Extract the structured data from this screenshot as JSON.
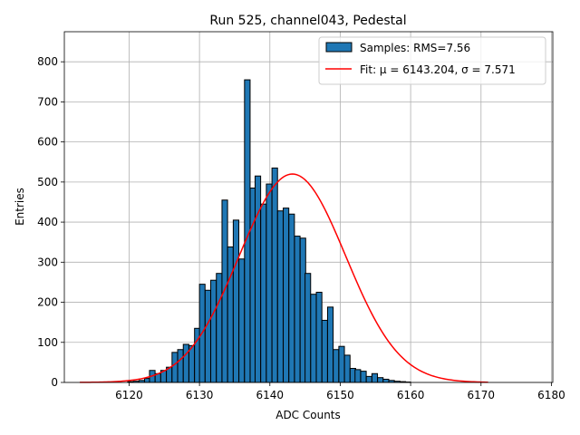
{
  "chart_data": {
    "type": "bar",
    "title": "Run 525, channel043, Pedestal",
    "xlabel": "ADC Counts",
    "ylabel": "Entries",
    "xlim": [
      6110.8,
      6180.2
    ],
    "ylim": [
      0,
      875
    ],
    "xticks": [
      6120,
      6130,
      6140,
      6150,
      6160,
      6170,
      6180
    ],
    "yticks": [
      0,
      100,
      200,
      300,
      400,
      500,
      600,
      700,
      800
    ],
    "grid": true,
    "legend_position": "top-right",
    "bin_width": 0.79,
    "series": [
      {
        "name": "Samples: RMS=7.56",
        "kind": "histogram",
        "color": "#1f77b4",
        "edgecolor": "#000000",
        "bins_x": [
          6119.0,
          6119.8,
          6120.6,
          6121.4,
          6122.2,
          6122.9,
          6123.7,
          6124.5,
          6125.3,
          6126.1,
          6126.9,
          6127.7,
          6128.5,
          6129.3,
          6130.0,
          6130.8,
          6131.6,
          6132.4,
          6133.2,
          6134.0,
          6134.8,
          6135.6,
          6136.4,
          6137.2,
          6137.9,
          6138.7,
          6139.5,
          6140.3,
          6141.1,
          6141.9,
          6142.7,
          6143.5,
          6144.3,
          6145.0,
          6145.8,
          6146.6,
          6147.4,
          6148.2,
          6149.0,
          6149.8,
          6150.6,
          6151.4,
          6152.1,
          6152.9,
          6153.7,
          6154.5,
          6155.3,
          6156.1,
          6156.9,
          6157.7,
          6158.5,
          6159.2,
          6160.0,
          6160.8,
          6161.6,
          6162.4,
          6163.2,
          6164.0,
          6164.8,
          6165.6,
          6166.3,
          6167.1,
          6167.9
        ],
        "counts": [
          0,
          2,
          3,
          5,
          10,
          30,
          22,
          30,
          38,
          75,
          82,
          95,
          92,
          135,
          245,
          230,
          255,
          272,
          455,
          338,
          405,
          308,
          755,
          485,
          515,
          445,
          495,
          535,
          428,
          435,
          420,
          365,
          360,
          272,
          220,
          225,
          155,
          188,
          82,
          90,
          68,
          35,
          32,
          28,
          15,
          22,
          12,
          8,
          5,
          3,
          2,
          1,
          0,
          0,
          0,
          0,
          0,
          0,
          0,
          0,
          0,
          0,
          0
        ]
      },
      {
        "name": "Fit: μ = 6143.204, σ = 7.571",
        "kind": "gaussian-fit",
        "color": "#ff0000",
        "mu": 6143.204,
        "sigma": 7.571,
        "amplitude": 520,
        "x_range": [
          6113.0,
          6171.0
        ]
      }
    ]
  },
  "legend": {
    "hist_label": "Samples: RMS=7.56",
    "fit_label": "Fit: μ = 6143.204, σ = 7.571"
  }
}
